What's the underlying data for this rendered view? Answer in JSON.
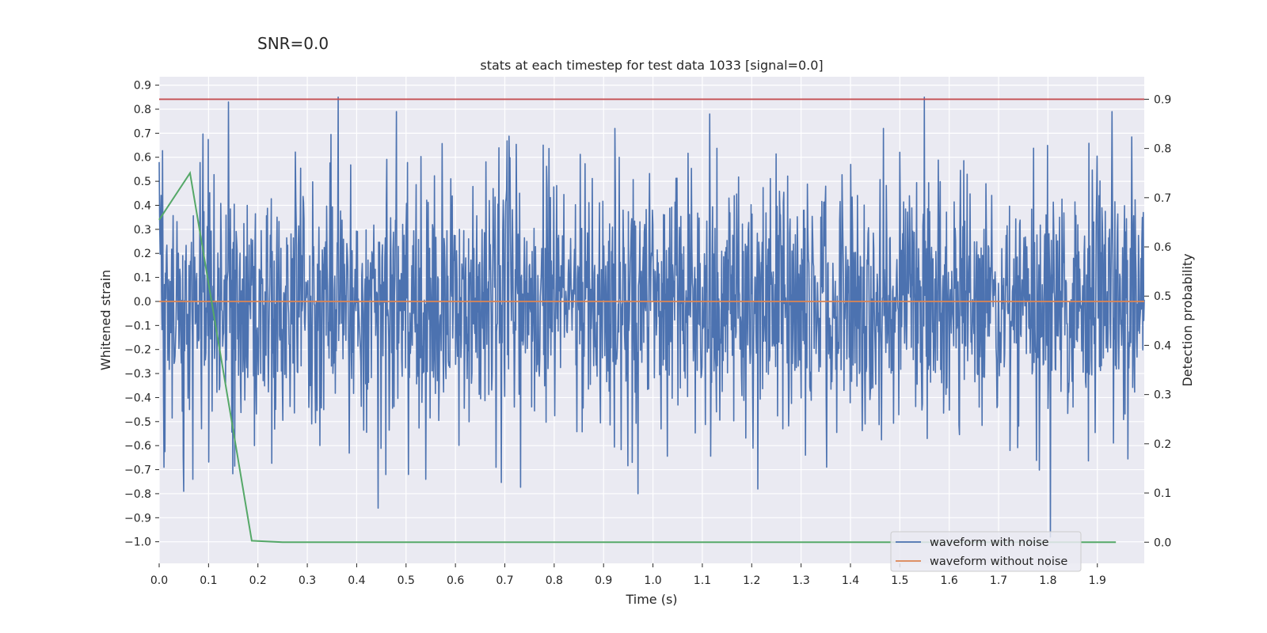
{
  "chart_data": {
    "type": "line",
    "suptitle": "SNR=0.0",
    "title": "stats at each timestep for test data 1033 [signal=0.0]",
    "xlabel": "Time (s)",
    "ylabel_left": "Whitened strain",
    "ylabel_right": "Detection probability",
    "xlim": [
      0.0,
      1.995
    ],
    "ylim_left": [
      -1.09,
      0.935
    ],
    "ylim_right": [
      -0.043,
      0.9457
    ],
    "xticks": [
      "0.0",
      "0.1",
      "0.2",
      "0.3",
      "0.4",
      "0.5",
      "0.6",
      "0.7",
      "0.8",
      "0.9",
      "1.0",
      "1.1",
      "1.2",
      "1.3",
      "1.4",
      "1.5",
      "1.6",
      "1.7",
      "1.8",
      "1.9"
    ],
    "yticks_left": [
      "0.9",
      "0.8",
      "0.7",
      "0.6",
      "0.5",
      "0.4",
      "0.3",
      "0.2",
      "0.1",
      "0.0",
      "-0.1",
      "-0.2",
      "-0.3",
      "-0.4",
      "-0.5",
      "-0.6",
      "-0.7",
      "-0.8",
      "-0.9",
      "-1.0"
    ],
    "yticks_right": [
      "0.9",
      "0.8",
      "0.7",
      "0.6",
      "0.5",
      "0.4",
      "0.3",
      "0.2",
      "0.1",
      "0.0"
    ],
    "colors": {
      "background": "#eaeaf2",
      "grid": "#ffffff",
      "noisy": "#4c72b0",
      "clean": "#dd8452",
      "probability": "#55a868",
      "threshold": "#c44e52"
    },
    "series": [
      {
        "name": "waveform with noise",
        "axis": "left",
        "style": "dense noise trace, amplitude roughly -1.0 to 0.85",
        "x_range": [
          0.0,
          1.995
        ],
        "n_samples": 2048,
        "peaks": [
          {
            "x": 0.0,
            "y": 0.58
          },
          {
            "x": 0.01,
            "y": -0.69
          },
          {
            "x": 0.05,
            "y": -0.79
          },
          {
            "x": 0.068,
            "y": -0.74
          },
          {
            "x": 0.14,
            "y": 0.83
          },
          {
            "x": 0.363,
            "y": 0.85
          },
          {
            "x": 0.443,
            "y": -0.86
          },
          {
            "x": 0.48,
            "y": 0.79
          },
          {
            "x": 0.505,
            "y": -0.72
          },
          {
            "x": 0.54,
            "y": -0.74
          },
          {
            "x": 1.115,
            "y": 0.78
          },
          {
            "x": 1.55,
            "y": 0.85
          },
          {
            "x": 1.805,
            "y": -0.98
          },
          {
            "x": 1.93,
            "y": 0.79
          }
        ]
      },
      {
        "name": "waveform without noise",
        "axis": "left",
        "x": [
          0.0,
          1.995
        ],
        "values": [
          0.0,
          0.0
        ]
      },
      {
        "name": "detection probability",
        "axis": "right",
        "x": [
          0.0,
          0.0625,
          0.1875,
          0.25,
          0.3125,
          0.5,
          1.0,
          1.5,
          1.9375
        ],
        "values": [
          0.655,
          0.75,
          0.003,
          0.0,
          0.0,
          0.0,
          0.0,
          0.0,
          0.0
        ]
      },
      {
        "name": "threshold",
        "axis": "right",
        "x": [
          0.0,
          1.995
        ],
        "values": [
          0.9,
          0.9
        ]
      }
    ],
    "legend": {
      "position": "lower-right",
      "entries": [
        "waveform with noise",
        "waveform without noise"
      ]
    }
  }
}
